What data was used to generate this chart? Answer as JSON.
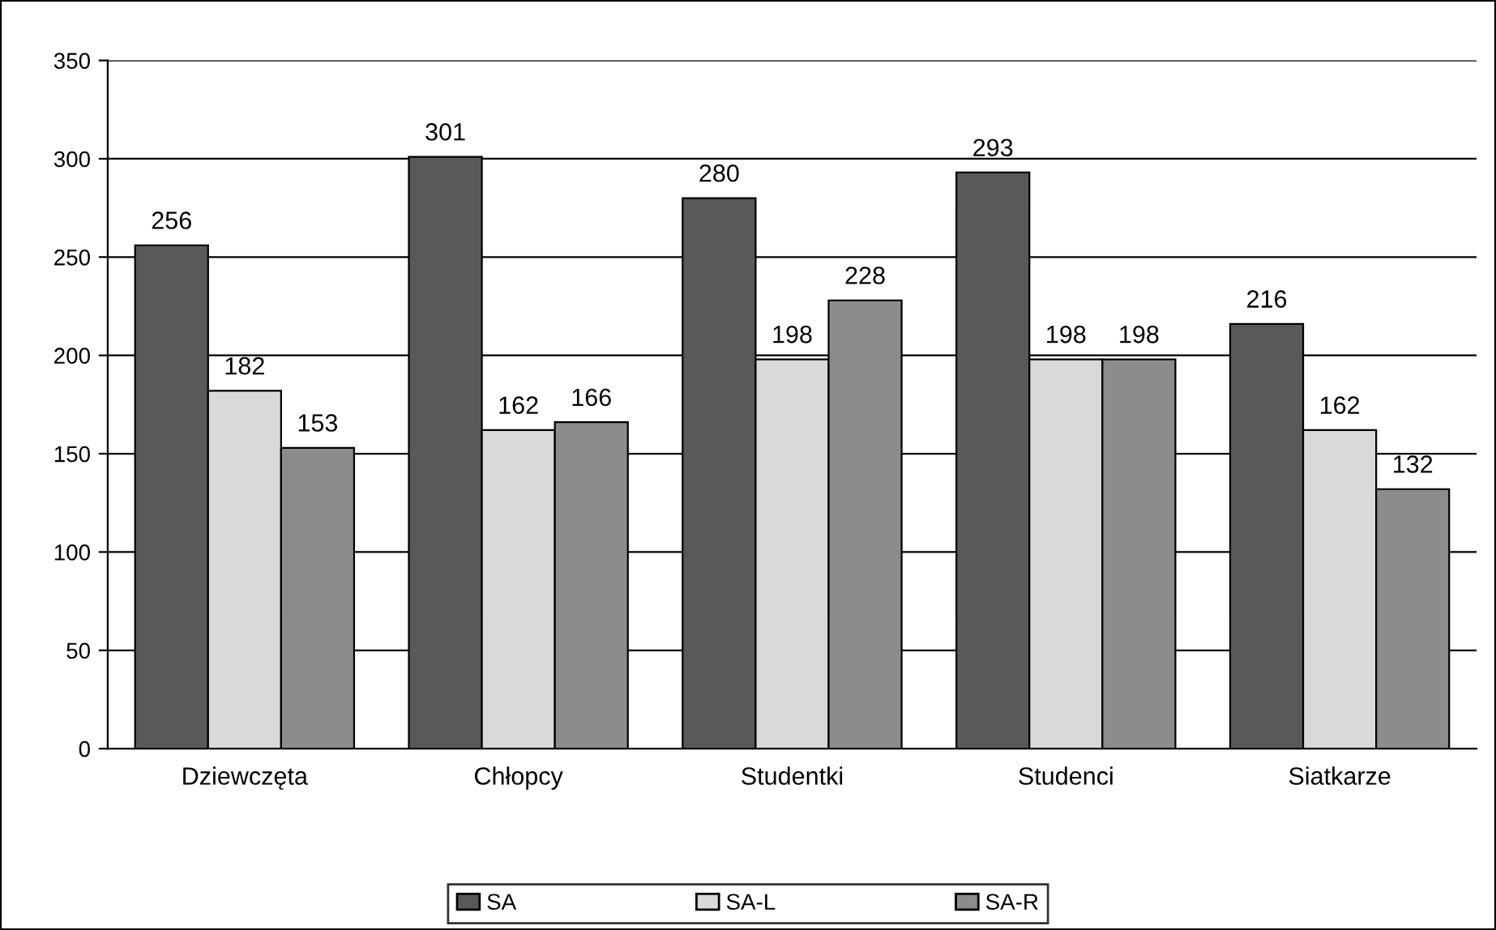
{
  "chart_data": {
    "type": "bar",
    "categories": [
      "Dziewczęta",
      "Chłopcy",
      "Studentki",
      "Studenci",
      "Siatkarze"
    ],
    "series": [
      {
        "name": "SA",
        "color": "#595959",
        "values": [
          256,
          301,
          280,
          293,
          216
        ]
      },
      {
        "name": "SA-L",
        "color": "#d9d9d9",
        "values": [
          182,
          162,
          198,
          198,
          162
        ]
      },
      {
        "name": "SA-R",
        "color": "#8c8c8c",
        "values": [
          153,
          166,
          228,
          198,
          132
        ]
      }
    ],
    "ylim": [
      0,
      350
    ],
    "yticks": [
      0,
      50,
      100,
      150,
      200,
      250,
      300,
      350
    ],
    "grid": "y",
    "legend": "bottom",
    "data_labels": true
  }
}
